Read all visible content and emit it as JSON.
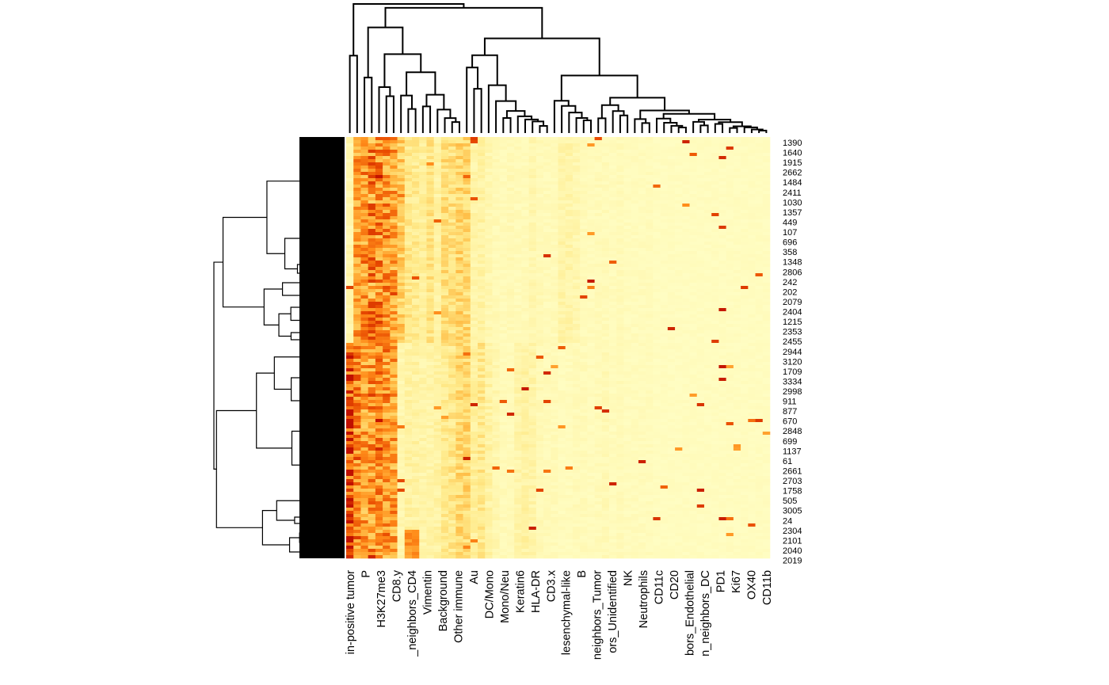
{
  "chart_data": {
    "type": "heatmap",
    "title": "",
    "xlabel": "",
    "ylabel": "",
    "dendrogram_rows": true,
    "dendrogram_columns": true,
    "color_scale": [
      "#FFFFC8",
      "#FFEA8A",
      "#FFC04A",
      "#FF8C1A",
      "#E84A00",
      "#C01000"
    ],
    "column_labels": [
      "in-positive tumor",
      "P",
      "H3K27me3",
      "CD8.y",
      "_neighbors_CD4",
      "Vimentin",
      "Background",
      "Other immune",
      "Au",
      "DC/Mono",
      "Mono/Neu",
      "Keratin6",
      "HLA-DR",
      "CD3.x",
      "lesenchymal-like",
      "B",
      "neighbors_Tumor",
      "ors_Unidentified",
      "NK",
      "Neutrophils",
      "CD11c",
      "CD20",
      "bors_Endothelial",
      "n_neighbors_DC",
      "PD1",
      "Ki67",
      "OX40",
      "CD11b"
    ],
    "row_labels": [
      "1390",
      "1640",
      "1915",
      "2662",
      "1484",
      "2411",
      "1030",
      "1357",
      "449",
      "107",
      "696",
      "358",
      "1348",
      "2806",
      "242",
      "202",
      "2079",
      "2404",
      "1215",
      "2353",
      "2455",
      "2944",
      "3120",
      "1709",
      "3334",
      "2998",
      "911",
      "877",
      "670",
      "2848",
      "699",
      "1137",
      "61",
      "2661",
      "2703",
      "1758",
      "505",
      "3005",
      "24",
      "2304",
      "2101",
      "2040",
      "2019"
    ],
    "column_intensity_upper_cluster": [
      0.08,
      0.5,
      0.55,
      0.5,
      0.6,
      0.55,
      0.5,
      0.35,
      0.2,
      0.18,
      0.15,
      0.22,
      0.12,
      0.25,
      0.25,
      0.3,
      0.28,
      0.1,
      0.12,
      0.08,
      0.06,
      0.05,
      0.06,
      0.05,
      0.05,
      0.08,
      0.06,
      0.05,
      0.05,
      0.1,
      0.1,
      0.08,
      0.05,
      0.04,
      0.05,
      0.05,
      0.04,
      0.05,
      0.04,
      0.04,
      0.04,
      0.04,
      0.03,
      0.03,
      0.03,
      0.03,
      0.03,
      0.03,
      0.03,
      0.03,
      0.03,
      0.03,
      0.03,
      0.03,
      0.03,
      0.03,
      0.03,
      0.03
    ],
    "column_intensity_lower_cluster": [
      0.85,
      0.6,
      0.5,
      0.55,
      0.6,
      0.55,
      0.5,
      0.08,
      0.12,
      0.12,
      0.1,
      0.1,
      0.12,
      0.18,
      0.2,
      0.28,
      0.3,
      0.15,
      0.2,
      0.12,
      0.08,
      0.05,
      0.05,
      0.1,
      0.12,
      0.1,
      0.06,
      0.05,
      0.05,
      0.04,
      0.04,
      0.05,
      0.05,
      0.04,
      0.05,
      0.06,
      0.04,
      0.05,
      0.04,
      0.04,
      0.04,
      0.04,
      0.03,
      0.03,
      0.03,
      0.03,
      0.03,
      0.03,
      0.03,
      0.03,
      0.03,
      0.03,
      0.03,
      0.03,
      0.03,
      0.03,
      0.03,
      0.03
    ]
  }
}
